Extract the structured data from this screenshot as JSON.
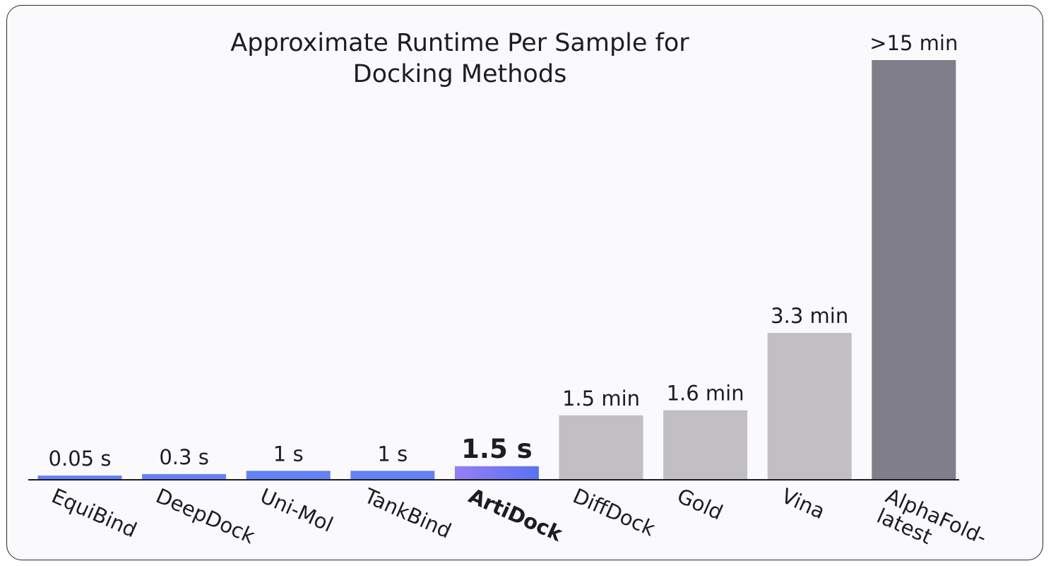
{
  "chart_data": {
    "type": "bar",
    "title": "Approximate Runtime Per Sample for Docking Methods",
    "title_lines": [
      "Approximate Runtime Per Sample for",
      "Docking Methods"
    ],
    "unit": "seconds",
    "xlabel": "",
    "ylabel": "",
    "grid": false,
    "legend": "none",
    "highlight_category": "ArtiDock",
    "categories": [
      "EquiBind",
      "DeepDock",
      "Uni-Mol",
      "TankBind",
      "ArtiDock",
      "DiffDock",
      "Gold",
      "Vina",
      "AlphaFold-latest"
    ],
    "category_label_lines": [
      [
        "EquiBind"
      ],
      [
        "DeepDock"
      ],
      [
        "Uni-Mol"
      ],
      [
        "TankBind"
      ],
      [
        "ArtiDock"
      ],
      [
        "DiffDock"
      ],
      [
        "Gold"
      ],
      [
        "Vina"
      ],
      [
        "AlphaFold-",
        "latest"
      ]
    ],
    "values": [
      0.05,
      0.3,
      1,
      1,
      1.5,
      90,
      96,
      198,
      900
    ],
    "value_labels": [
      "0.05 s",
      "0.3 s",
      "1 s",
      "1 s",
      "1.5 s",
      "1.5 min",
      "1.6 min",
      "3.3 min",
      ">15 min"
    ],
    "display_heights": [
      0.0101,
      0.0137,
      0.0214,
      0.0214,
      0.0323,
      0.1535,
      0.1657,
      0.3498,
      1.0
    ]
  },
  "colors": {
    "title": "#1d1c21",
    "fast_bar": "#6583f5",
    "highlight_bar_start": "#9580f3",
    "highlight_bar_end": "#5a72f2",
    "mid_bar": "#c1bfc4",
    "slow_bar": "#807e8a",
    "axis": "#1d1c21",
    "card_background": "#faf9fc",
    "card_border": "#2a2a2e"
  },
  "bar_color_groups": [
    "fast",
    "fast",
    "fast",
    "fast",
    "highlight",
    "mid",
    "mid",
    "mid",
    "slow"
  ]
}
